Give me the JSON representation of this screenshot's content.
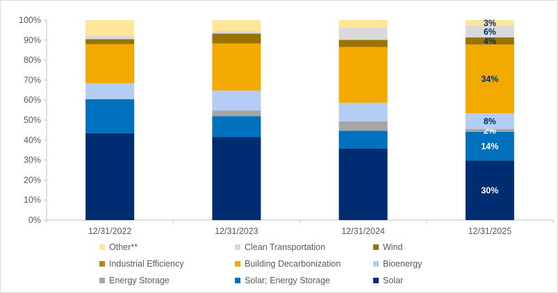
{
  "chart_data": {
    "type": "bar",
    "stacked": true,
    "categories": [
      "12/31/2022",
      "12/31/2023",
      "12/31/2024",
      "12/31/2025"
    ],
    "ylim": [
      0,
      100
    ],
    "yticks": [
      "0%",
      "10%",
      "20%",
      "30%",
      "40%",
      "50%",
      "60%",
      "70%",
      "80%",
      "90%",
      "100%"
    ],
    "grid": false,
    "legend_position": "bottom",
    "series": [
      {
        "name": "Solar",
        "color": "#002d72",
        "values": [
          43.5,
          41.5,
          35.8,
          29.8
        ],
        "labels": [
          "",
          "",
          "",
          "30%"
        ]
      },
      {
        "name": "Solar; Energy Storage",
        "color": "#0071bc",
        "values": [
          17.0,
          10.5,
          8.9,
          14.3
        ],
        "labels": [
          "",
          "",
          "",
          "14%"
        ]
      },
      {
        "name": "Energy Storage",
        "color": "#a5a5a5",
        "values": [
          0.0,
          2.8,
          4.7,
          1.5
        ],
        "labels": [
          "",
          "",
          "",
          "2%"
        ]
      },
      {
        "name": "Bioenergy",
        "color": "#b4cdf5",
        "values": [
          8.0,
          10.0,
          9.3,
          7.8
        ],
        "labels": [
          "",
          "",
          "",
          "8%"
        ]
      },
      {
        "name": "Building Decarbonization",
        "color": "#f2a900",
        "values": [
          19.5,
          23.5,
          27.9,
          34.4
        ],
        "labels": [
          "",
          "",
          "",
          "34%"
        ]
      },
      {
        "name": "Industrial Efficiency",
        "color": "#b8860b",
        "values": [
          0.0,
          0.0,
          0.0,
          0.0
        ],
        "labels": [
          "",
          "",
          "",
          ""
        ]
      },
      {
        "name": "Wind",
        "color": "#9c7200",
        "values": [
          2.5,
          5.0,
          3.5,
          3.6
        ],
        "labels": [
          "",
          "",
          "",
          "4%"
        ]
      },
      {
        "name": "Clean Transportation",
        "color": "#d9d9d9",
        "values": [
          1.5,
          1.2,
          6.0,
          5.9
        ],
        "labels": [
          "",
          "",
          "",
          "6%"
        ]
      },
      {
        "name": "Other**",
        "color": "#ffe699",
        "values": [
          8.0,
          5.5,
          3.9,
          2.7
        ],
        "labels": [
          "",
          "",
          "",
          "3%"
        ]
      }
    ]
  },
  "legend": [
    {
      "label": "Other**",
      "color": "#ffe699"
    },
    {
      "label": "Clean Transportation",
      "color": "#d9d9d9"
    },
    {
      "label": "Wind",
      "color": "#9c7200"
    },
    {
      "label": "Industrial Efficiency",
      "color": "#b8860b"
    },
    {
      "label": "Building Decarbonization",
      "color": "#f2a900"
    },
    {
      "label": "Bioenergy",
      "color": "#b4cdf5"
    },
    {
      "label": "Energy Storage",
      "color": "#a5a5a5"
    },
    {
      "label": "Solar; Energy Storage",
      "color": "#0071bc"
    },
    {
      "label": "Solar",
      "color": "#002d72"
    }
  ]
}
